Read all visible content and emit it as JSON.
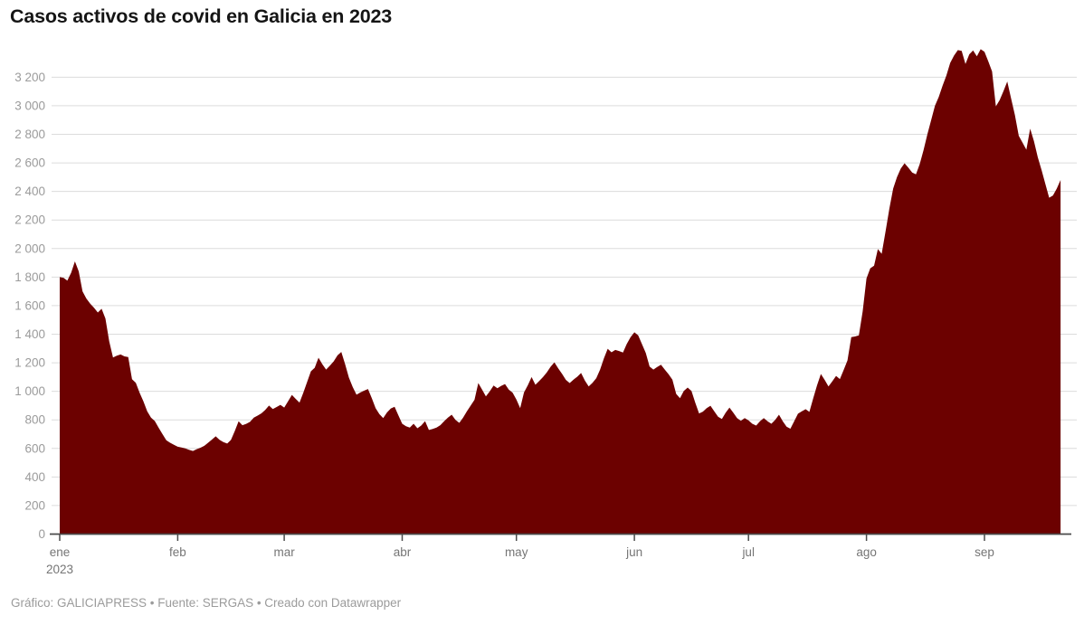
{
  "title": "Casos activos de covid en Galicia en 2023",
  "footer": {
    "text": "Gráfico: GALICIAPRESS • Fuente: SERGAS • Creado con Datawrapper"
  },
  "chart_data": {
    "type": "area",
    "title": "Casos activos de covid en Galicia en 2023",
    "xlabel": "",
    "ylabel": "",
    "ylim": [
      0,
      3400
    ],
    "grid": true,
    "legend_position": "none",
    "x_axis": {
      "unit": "index = días desde el 1 de enero de 2023",
      "ticks": [
        {
          "day": 0,
          "label": "ene",
          "sub": "2023"
        },
        {
          "day": 31,
          "label": "feb"
        },
        {
          "day": 59,
          "label": "mar"
        },
        {
          "day": 90,
          "label": "abr"
        },
        {
          "day": 120,
          "label": "may"
        },
        {
          "day": 151,
          "label": "jun"
        },
        {
          "day": 181,
          "label": "jul"
        },
        {
          "day": 212,
          "label": "ago"
        },
        {
          "day": 243,
          "label": "sep"
        }
      ]
    },
    "y_axis": {
      "ticks": [
        {
          "value": 0,
          "label": "0"
        },
        {
          "value": 200,
          "label": "200"
        },
        {
          "value": 400,
          "label": "400"
        },
        {
          "value": 600,
          "label": "600"
        },
        {
          "value": 800,
          "label": "800"
        },
        {
          "value": 1000,
          "label": "1 000"
        },
        {
          "value": 1200,
          "label": "1 200"
        },
        {
          "value": 1400,
          "label": "1 400"
        },
        {
          "value": 1600,
          "label": "1 600"
        },
        {
          "value": 1800,
          "label": "1 800"
        },
        {
          "value": 2000,
          "label": "2 000"
        },
        {
          "value": 2200,
          "label": "2 200"
        },
        {
          "value": 2400,
          "label": "2 400"
        },
        {
          "value": 2600,
          "label": "2 600"
        },
        {
          "value": 2800,
          "label": "2 800"
        },
        {
          "value": 3000,
          "label": "3 000"
        },
        {
          "value": 3200,
          "label": "3 200"
        }
      ]
    },
    "series": [
      {
        "name": "Casos activos",
        "start_day": 0,
        "values": [
          1800,
          1795,
          1775,
          1830,
          1910,
          1840,
          1700,
          1650,
          1615,
          1585,
          1552,
          1578,
          1510,
          1350,
          1237,
          1250,
          1258,
          1245,
          1240,
          1085,
          1060,
          990,
          930,
          860,
          815,
          792,
          745,
          700,
          657,
          640,
          625,
          612,
          606,
          600,
          590,
          582,
          595,
          605,
          618,
          640,
          662,
          685,
          660,
          645,
          634,
          660,
          722,
          790,
          763,
          772,
          786,
          815,
          830,
          846,
          870,
          900,
          876,
          890,
          905,
          886,
          930,
          975,
          947,
          921,
          990,
          1065,
          1140,
          1165,
          1235,
          1190,
          1152,
          1180,
          1210,
          1252,
          1276,
          1190,
          1096,
          1030,
          976,
          992,
          1005,
          1016,
          952,
          882,
          840,
          812,
          852,
          880,
          892,
          832,
          773,
          755,
          746,
          773,
          741,
          760,
          791,
          729,
          736,
          746,
          763,
          790,
          815,
          836,
          800,
          779,
          815,
          860,
          900,
          941,
          1058,
          1012,
          964,
          1000,
          1040,
          1022,
          1038,
          1051,
          1012,
          991,
          942,
          882,
          992,
          1042,
          1100,
          1046,
          1072,
          1100,
          1132,
          1172,
          1203,
          1160,
          1122,
          1080,
          1058,
          1082,
          1102,
          1128,
          1075,
          1034,
          1060,
          1092,
          1152,
          1230,
          1298,
          1273,
          1290,
          1282,
          1272,
          1332,
          1380,
          1413,
          1392,
          1330,
          1268,
          1173,
          1152,
          1170,
          1186,
          1152,
          1120,
          1082,
          982,
          952,
          1002,
          1026,
          1002,
          920,
          845,
          858,
          882,
          899,
          860,
          822,
          806,
          850,
          886,
          850,
          812,
          793,
          813,
          796,
          773,
          760,
          790,
          812,
          790,
          773,
          800,
          836,
          790,
          752,
          738,
          790,
          843,
          860,
          875,
          856,
          950,
          1040,
          1121,
          1080,
          1034,
          1070,
          1108,
          1086,
          1150,
          1216,
          1380,
          1384,
          1392,
          1560,
          1790,
          1862,
          1880,
          1996,
          1963,
          2120,
          2280,
          2420,
          2500,
          2560,
          2597,
          2566,
          2532,
          2520,
          2592,
          2690,
          2800,
          2900,
          3000,
          3062,
          3140,
          3212,
          3300,
          3352,
          3390,
          3385,
          3293,
          3360,
          3388,
          3346,
          3396,
          3378,
          3312,
          3240,
          2996,
          3040,
          3102,
          3170,
          3052,
          2936,
          2790,
          2742,
          2692,
          2840,
          2752,
          2640,
          2550,
          2452,
          2356,
          2372,
          2420,
          2480
        ]
      }
    ],
    "colors": {
      "area": "#6c0100",
      "grid": "#dcdcdc",
      "axis": "#4a4a4a",
      "tick_label": "#9b9b9b",
      "month_label": "#757575",
      "title": "#151515",
      "footer": "#9b9b9b",
      "background": "#ffffff"
    }
  }
}
